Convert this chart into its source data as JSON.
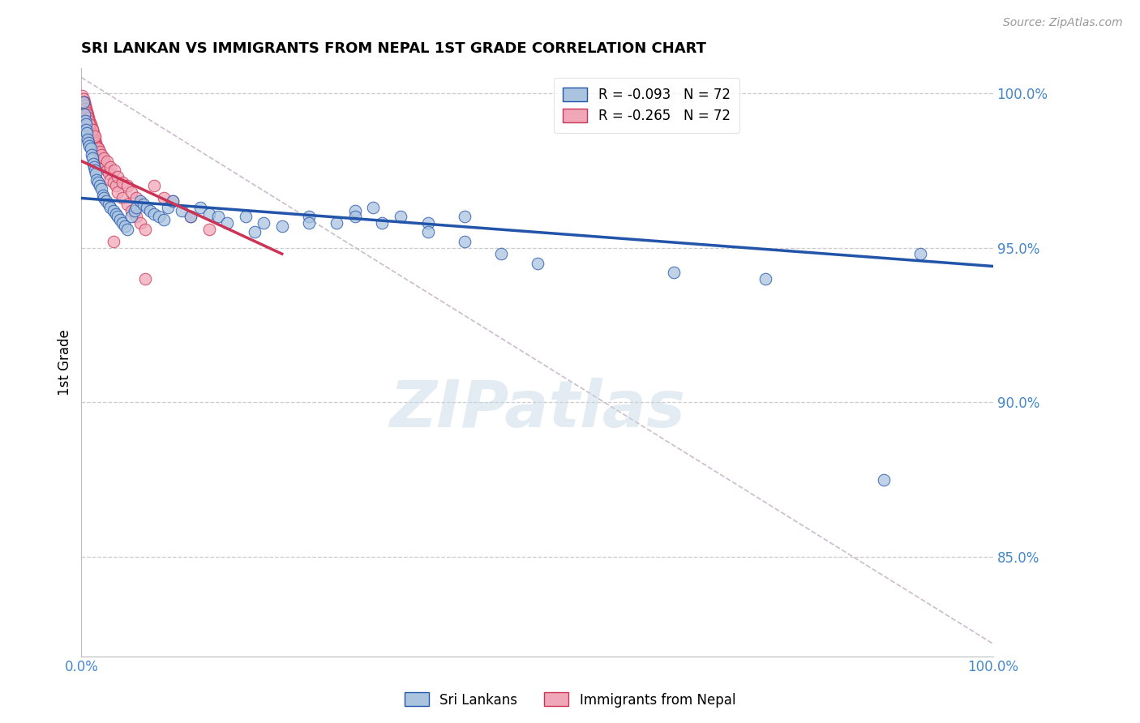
{
  "title": "SRI LANKAN VS IMMIGRANTS FROM NEPAL 1ST GRADE CORRELATION CHART",
  "source": "Source: ZipAtlas.com",
  "ylabel": "1st Grade",
  "right_ytick_vals": [
    1.0,
    0.95,
    0.9,
    0.85
  ],
  "legend_blue": "R = -0.093   N = 72",
  "legend_pink": "R = -0.265   N = 72",
  "legend_label_blue": "Sri Lankans",
  "legend_label_pink": "Immigrants from Nepal",
  "watermark": "ZIPatlas",
  "blue_color": "#aac4e0",
  "pink_color": "#f0a8b8",
  "line_blue": "#2255aa",
  "line_pink": "#cc3355",
  "line_dashed_color": "#ccbbcc",
  "xmin": 0.0,
  "xmax": 1.0,
  "ymin": 0.818,
  "ymax": 1.008,
  "blue_scatter_x": [
    0.002,
    0.003,
    0.004,
    0.005,
    0.005,
    0.006,
    0.007,
    0.008,
    0.009,
    0.01,
    0.011,
    0.012,
    0.013,
    0.014,
    0.015,
    0.016,
    0.017,
    0.018,
    0.02,
    0.022,
    0.024,
    0.025,
    0.027,
    0.03,
    0.032,
    0.035,
    0.038,
    0.04,
    0.042,
    0.045,
    0.048,
    0.05,
    0.055,
    0.058,
    0.06,
    0.065,
    0.068,
    0.072,
    0.075,
    0.08,
    0.085,
    0.09,
    0.095,
    0.1,
    0.11,
    0.12,
    0.13,
    0.14,
    0.15,
    0.16,
    0.18,
    0.2,
    0.22,
    0.25,
    0.28,
    0.3,
    0.32,
    0.35,
    0.38,
    0.42,
    0.19,
    0.25,
    0.3,
    0.33,
    0.38,
    0.42,
    0.46,
    0.5,
    0.65,
    0.75,
    0.88,
    0.92
  ],
  "blue_scatter_y": [
    0.997,
    0.993,
    0.991,
    0.99,
    0.988,
    0.987,
    0.985,
    0.984,
    0.983,
    0.982,
    0.98,
    0.979,
    0.977,
    0.976,
    0.975,
    0.974,
    0.972,
    0.971,
    0.97,
    0.969,
    0.967,
    0.966,
    0.965,
    0.964,
    0.963,
    0.962,
    0.961,
    0.96,
    0.959,
    0.958,
    0.957,
    0.956,
    0.96,
    0.962,
    0.963,
    0.965,
    0.964,
    0.963,
    0.962,
    0.961,
    0.96,
    0.959,
    0.963,
    0.965,
    0.962,
    0.96,
    0.963,
    0.961,
    0.96,
    0.958,
    0.96,
    0.958,
    0.957,
    0.96,
    0.958,
    0.962,
    0.963,
    0.96,
    0.958,
    0.96,
    0.955,
    0.958,
    0.96,
    0.958,
    0.955,
    0.952,
    0.948,
    0.945,
    0.942,
    0.94,
    0.875,
    0.948
  ],
  "pink_scatter_x": [
    0.001,
    0.002,
    0.003,
    0.004,
    0.005,
    0.006,
    0.007,
    0.008,
    0.009,
    0.01,
    0.011,
    0.012,
    0.013,
    0.014,
    0.015,
    0.016,
    0.017,
    0.018,
    0.019,
    0.02,
    0.022,
    0.024,
    0.026,
    0.028,
    0.03,
    0.032,
    0.035,
    0.038,
    0.04,
    0.045,
    0.05,
    0.055,
    0.06,
    0.065,
    0.07,
    0.08,
    0.09,
    0.1,
    0.12,
    0.14,
    0.007,
    0.008,
    0.009,
    0.01,
    0.012,
    0.014,
    0.016,
    0.018,
    0.02,
    0.022,
    0.025,
    0.028,
    0.032,
    0.036,
    0.04,
    0.045,
    0.05,
    0.055,
    0.06,
    0.065,
    0.002,
    0.003,
    0.004,
    0.005,
    0.006,
    0.007,
    0.008,
    0.009,
    0.012,
    0.015,
    0.035,
    0.07
  ],
  "pink_scatter_y": [
    0.999,
    0.998,
    0.997,
    0.996,
    0.995,
    0.994,
    0.993,
    0.992,
    0.991,
    0.99,
    0.989,
    0.988,
    0.987,
    0.986,
    0.985,
    0.984,
    0.983,
    0.982,
    0.981,
    0.98,
    0.979,
    0.978,
    0.977,
    0.975,
    0.974,
    0.972,
    0.971,
    0.97,
    0.968,
    0.966,
    0.964,
    0.962,
    0.96,
    0.958,
    0.956,
    0.97,
    0.966,
    0.965,
    0.96,
    0.956,
    0.99,
    0.989,
    0.988,
    0.987,
    0.985,
    0.984,
    0.983,
    0.982,
    0.981,
    0.98,
    0.979,
    0.978,
    0.976,
    0.975,
    0.973,
    0.971,
    0.97,
    0.968,
    0.966,
    0.964,
    0.997,
    0.996,
    0.995,
    0.994,
    0.993,
    0.992,
    0.991,
    0.99,
    0.988,
    0.986,
    0.952,
    0.94
  ],
  "blue_line_x": [
    0.0,
    1.0
  ],
  "blue_line_y": [
    0.966,
    0.944
  ],
  "pink_line_x": [
    0.0,
    0.22
  ],
  "pink_line_y": [
    0.978,
    0.948
  ],
  "dashed_line_x": [
    0.0,
    1.0
  ],
  "dashed_line_y": [
    1.005,
    0.822
  ]
}
